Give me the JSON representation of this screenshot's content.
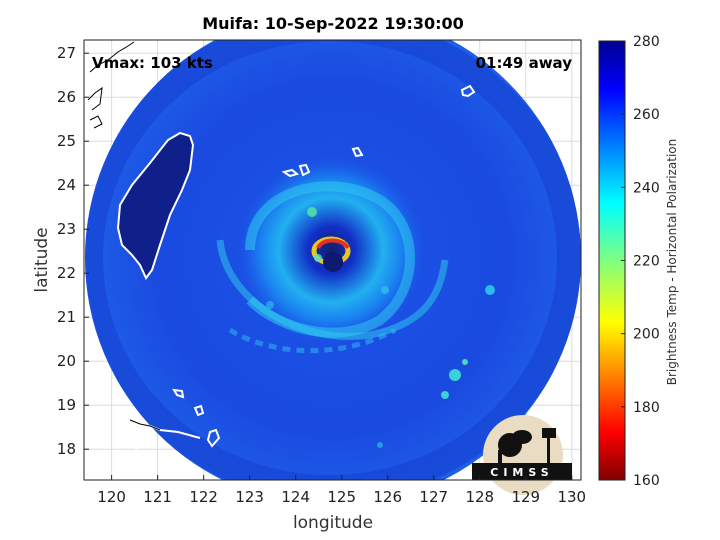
{
  "chart_data": {
    "type": "heatmap",
    "title": "Muifa: 10-Sep-2022 19:30:00",
    "xlabel": "longitude",
    "ylabel": "latitude",
    "xlim": [
      119.4,
      130.2
    ],
    "ylim": [
      17.3,
      27.3
    ],
    "xticks": [
      "120",
      "121",
      "122",
      "123",
      "124",
      "125",
      "126",
      "127",
      "128",
      "129",
      "130"
    ],
    "yticks": [
      "18",
      "19",
      "20",
      "21",
      "22",
      "23",
      "24",
      "25",
      "26",
      "27"
    ],
    "grid": true,
    "annotations": {
      "vmax": "Vmax: 103 kts",
      "timing": "01:49 away"
    },
    "storm_center": {
      "lon": 124.7,
      "lat": 22.4
    },
    "colorbar": {
      "label": "Brightness Temp - Horizontal Polarization",
      "range": [
        160,
        280
      ],
      "ticks": [
        "280",
        "260",
        "240",
        "220",
        "200",
        "180",
        "160"
      ],
      "colormap": "jet"
    },
    "logo_text": "CIMSS"
  }
}
